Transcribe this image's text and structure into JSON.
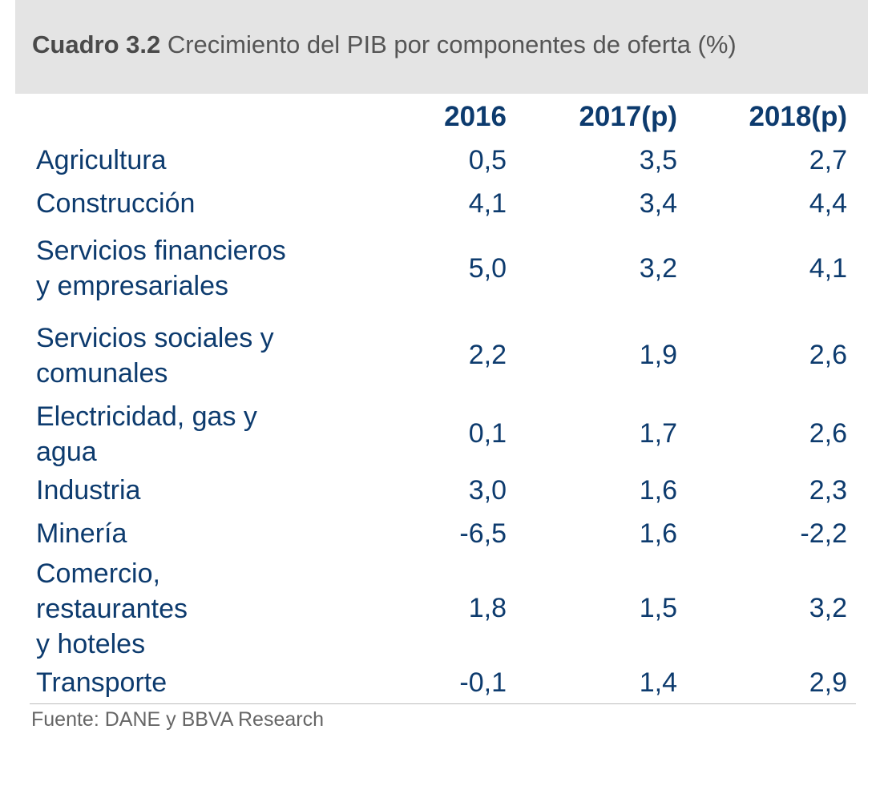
{
  "title": {
    "label": "Cuadro  3.2",
    "text": " Crecimiento del PIB por componentes de oferta (%)"
  },
  "columns": [
    "2016",
    "2017(p)",
    "2018(p)"
  ],
  "rows": [
    {
      "label_lines": [
        "Agricultura"
      ],
      "values": [
        "0,5",
        "3,5",
        "2,7"
      ]
    },
    {
      "label_lines": [
        "Construcción"
      ],
      "values": [
        "4,1",
        "3,4",
        "4,4"
      ]
    },
    {
      "label_lines": [
        "Servicios financieros",
        "y empresariales"
      ],
      "values": [
        "5,0",
        "3,2",
        "4,1"
      ]
    },
    {
      "label_lines": [
        "Servicios sociales y",
        "comunales"
      ],
      "values": [
        "2,2",
        "1,9",
        "2,6"
      ]
    },
    {
      "label_lines": [
        "Electricidad, gas y",
        "agua"
      ],
      "values": [
        "0,1",
        "1,7",
        "2,6"
      ]
    },
    {
      "label_lines": [
        "Industria"
      ],
      "values": [
        "3,0",
        "1,6",
        "2,3"
      ]
    },
    {
      "label_lines": [
        "Minería"
      ],
      "values": [
        "-6,5",
        "1,6",
        "-2,2"
      ]
    },
    {
      "label_lines": [
        "Comercio,",
        "restaurantes",
        "y hoteles"
      ],
      "values": [
        "1,8",
        "1,5",
        "3,2"
      ]
    },
    {
      "label_lines": [
        "Transporte"
      ],
      "values": [
        "-0,1",
        "1,4",
        "2,9"
      ]
    }
  ],
  "source": "Fuente: DANE y BBVA Research"
}
